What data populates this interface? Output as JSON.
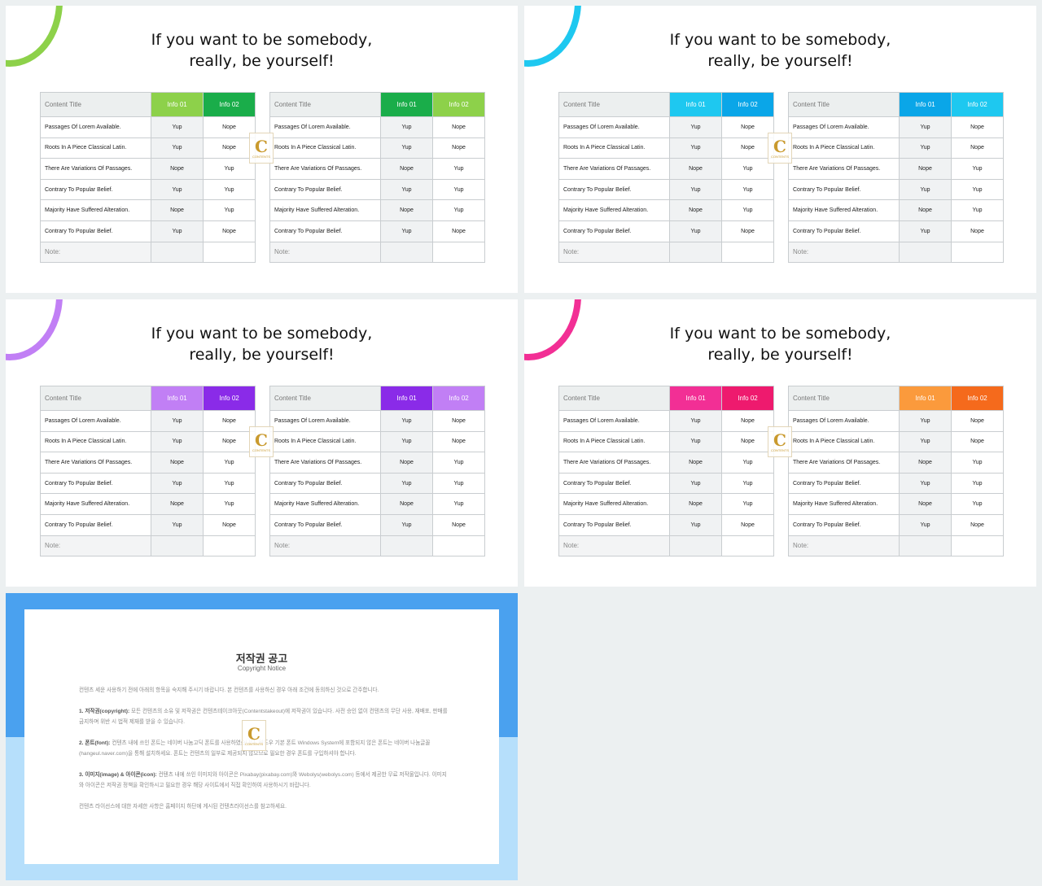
{
  "title_line1": "If you want to be somebody,",
  "title_line2": "really, be yourself!",
  "table": {
    "header": "Content Title",
    "info1": "Info 01",
    "info2": "Info 02",
    "rows": [
      {
        "label": "Passages Of Lorem Available.",
        "a": "Yup",
        "b": "Nope"
      },
      {
        "label": "Roots In A Piece Classical Latin.",
        "a": "Yup",
        "b": "Nope"
      },
      {
        "label": "There Are Variations Of Passages.",
        "a": "Nope",
        "b": "Yup"
      },
      {
        "label": "Contrary To Popular Belief.",
        "a": "Yup",
        "b": "Yup"
      },
      {
        "label": "Majority Have Suffered Alteration.",
        "a": "Nope",
        "b": "Yup"
      },
      {
        "label": "Contrary To Popular Belief.",
        "a": "Yup",
        "b": "Nope"
      }
    ],
    "note": "Note:"
  },
  "watermark": {
    "letter": "C",
    "text": "CONTENTS"
  },
  "slides": [
    {
      "ring": "#8dd14a",
      "left_h1": "#8dd14a",
      "left_h2": "#1aad4a",
      "right_h1": "#1aad4a",
      "right_h2": "#8dd14a"
    },
    {
      "ring": "#1ec8f0",
      "left_h1": "#1ec8f0",
      "left_h2": "#0aa6e8",
      "right_h1": "#0aa6e8",
      "right_h2": "#1ec8f0"
    },
    {
      "ring": "#c17ff5",
      "left_h1": "#c17ff5",
      "left_h2": "#8a2be8",
      "right_h1": "#8a2be8",
      "right_h2": "#c17ff5"
    },
    {
      "ring": "#f22f95",
      "left_h1": "#f22f95",
      "left_h2": "#ee1a6e",
      "right_h1": "#fb9a3c",
      "right_h2": "#f56a1c"
    }
  ],
  "notice": {
    "title": "저작권 공고",
    "subtitle": "Copyright Notice",
    "intro": "컨텐츠 세운 사용하기 전에 아래의 항목을 숙지해 주시기 바랍니다. 본 컨텐츠를 사용하신 경우 아래 조건에 동의하신 것으로 간주합니다.",
    "p1_head": "1. 저작권(copyright):",
    "p1": " 모든 컨텐츠의 소유 및 저작권은 컨텐츠테이크아웃(Contentstakeout)에 저작권이 있습니다. 사전 승인 없이 컨텐츠의 무단 사용, 재배포, 판매를 금지하며 위반 시 법적 제재를 받을 수 있습니다.",
    "p2_head": "2. 폰트(font):",
    "p2": " 컨텐츠 내에 쓰인 폰트는 네이버 나눔고딕 폰트를 사용하였습니다. 윈도우 기본 폰트 Windows System에 포함되지 않은 폰트는 네이버 나눔글꼴(hangeul.naver.com)을 통해 설치하세요. 폰트는 컨텐츠의 일부로 제공되지 않으므로 필요한 경우 폰트를 구입하셔야 합니다.",
    "p3_head": "3. 이미지(image) & 아이콘(icon):",
    "p3": " 컨텐츠 내에 쓰인 이미지와 아이콘은 Pixabay(pixabay.com)와 Webolys(webolys.com) 등에서 제공한 무료 저작물입니다. 이미지와 아이콘은 저작권 정책을 확인하시고 필요한 경우 해당 사이트에서 직접 확인하여 사용하시기 바랍니다.",
    "outro": "컨텐츠 라이선스에 대한 자세한 사항은 홈페이지 하단에 게시된 컨텐츠라이선스를 참고하세요."
  }
}
